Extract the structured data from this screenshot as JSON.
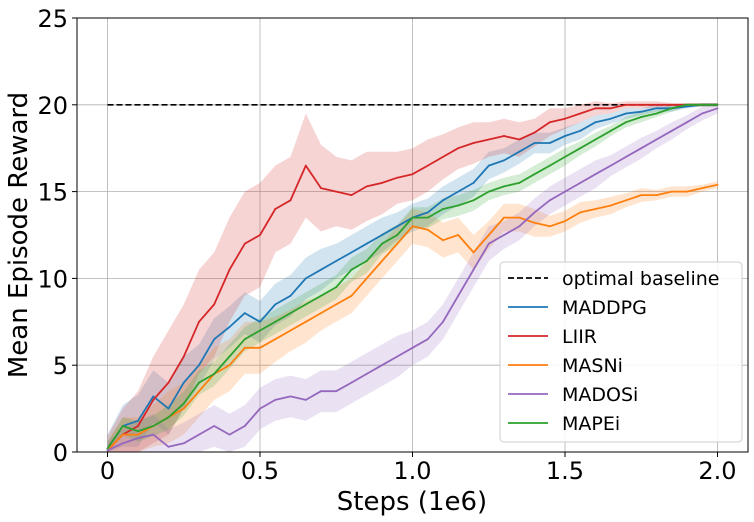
{
  "chart_data": {
    "type": "line",
    "title": "",
    "xlabel": "Steps (1e6)",
    "ylabel": "Mean Episode Reward",
    "xlim": [
      -0.1,
      2.1
    ],
    "ylim": [
      0,
      25
    ],
    "xticks": [
      0,
      0.5,
      1.0,
      1.5,
      2.0
    ],
    "xtick_labels": [
      "0",
      "0.5",
      "1.0",
      "1.5",
      "2.0"
    ],
    "yticks": [
      0,
      5,
      10,
      15,
      20,
      25
    ],
    "ytick_labels": [
      "0",
      "5",
      "10",
      "15",
      "20",
      "25"
    ],
    "grid": true,
    "legend_position": "lower-right",
    "baseline": {
      "name": "optimal baseline",
      "value": 20,
      "x": [
        0,
        2.0
      ],
      "color": "#000000",
      "style": "dashed"
    },
    "series": [
      {
        "name": "MADDPG",
        "color": "#1f77b4",
        "x": [
          0,
          0.05,
          0.1,
          0.15,
          0.2,
          0.25,
          0.3,
          0.35,
          0.4,
          0.45,
          0.5,
          0.55,
          0.6,
          0.65,
          0.7,
          0.75,
          0.8,
          0.85,
          0.9,
          0.95,
          1.0,
          1.05,
          1.1,
          1.15,
          1.2,
          1.25,
          1.3,
          1.35,
          1.4,
          1.45,
          1.5,
          1.55,
          1.6,
          1.65,
          1.7,
          1.75,
          1.8,
          1.85,
          1.9,
          1.95,
          2.0
        ],
        "y": [
          0.2,
          1.5,
          1.8,
          3.2,
          2.5,
          4.0,
          5.0,
          6.5,
          7.2,
          8.0,
          7.5,
          8.5,
          9.0,
          10.0,
          10.5,
          11.0,
          11.5,
          12.0,
          12.5,
          13.0,
          13.5,
          13.8,
          14.5,
          15.0,
          15.5,
          16.5,
          16.8,
          17.3,
          17.8,
          17.8,
          18.2,
          18.5,
          19.0,
          19.2,
          19.5,
          19.6,
          19.8,
          19.8,
          19.9,
          20.0,
          20.0
        ],
        "spread": [
          0.8,
          1.2,
          1.5,
          1.5,
          1.5,
          1.5,
          1.2,
          1.2,
          1.2,
          1.2,
          1.2,
          1.2,
          1.2,
          1.2,
          1.2,
          1.0,
          1.0,
          1.0,
          1.0,
          0.8,
          0.8,
          0.8,
          0.8,
          0.8,
          0.8,
          0.8,
          0.7,
          0.7,
          0.6,
          0.6,
          0.5,
          0.5,
          0.4,
          0.3,
          0.3,
          0.2,
          0.2,
          0.2,
          0.1,
          0.1,
          0.1
        ]
      },
      {
        "name": "LIIR",
        "color": "#d62728",
        "x": [
          0,
          0.05,
          0.1,
          0.15,
          0.2,
          0.25,
          0.3,
          0.35,
          0.4,
          0.45,
          0.5,
          0.55,
          0.6,
          0.65,
          0.7,
          0.75,
          0.8,
          0.85,
          0.9,
          0.95,
          1.0,
          1.05,
          1.1,
          1.15,
          1.2,
          1.25,
          1.3,
          1.35,
          1.4,
          1.45,
          1.5,
          1.55,
          1.6,
          1.65,
          1.7,
          1.75,
          1.8,
          1.85,
          1.9,
          1.95,
          2.0
        ],
        "y": [
          0.1,
          1.0,
          1.5,
          3.0,
          4.0,
          5.5,
          7.5,
          8.5,
          10.5,
          12.0,
          12.5,
          14.0,
          14.5,
          16.5,
          15.2,
          15.0,
          14.8,
          15.3,
          15.5,
          15.8,
          16.0,
          16.5,
          17.0,
          17.5,
          17.8,
          18.0,
          18.2,
          18.0,
          18.4,
          19.0,
          19.2,
          19.5,
          19.8,
          19.8,
          20.0,
          20.0,
          20.0,
          20.0,
          20.0,
          20.0,
          20.0
        ],
        "spread": [
          0.8,
          1.5,
          2.0,
          2.5,
          3.0,
          3.0,
          3.0,
          3.0,
          3.0,
          3.0,
          3.0,
          2.5,
          2.5,
          3.0,
          2.5,
          2.0,
          2.0,
          2.0,
          1.8,
          1.5,
          1.5,
          1.5,
          1.3,
          1.2,
          1.2,
          1.0,
          1.0,
          1.0,
          0.8,
          0.8,
          0.6,
          0.5,
          0.4,
          0.3,
          0.2,
          0.2,
          0.2,
          0.1,
          0.1,
          0.1,
          0.1
        ]
      },
      {
        "name": "MASNi",
        "color": "#ff7f0e",
        "x": [
          0,
          0.05,
          0.1,
          0.15,
          0.2,
          0.25,
          0.3,
          0.35,
          0.4,
          0.45,
          0.5,
          0.55,
          0.6,
          0.65,
          0.7,
          0.75,
          0.8,
          0.85,
          0.9,
          0.95,
          1.0,
          1.05,
          1.1,
          1.15,
          1.2,
          1.25,
          1.3,
          1.35,
          1.4,
          1.45,
          1.5,
          1.55,
          1.6,
          1.65,
          1.7,
          1.75,
          1.8,
          1.85,
          1.9,
          1.95,
          2.0
        ],
        "y": [
          0.1,
          1.0,
          1.0,
          1.5,
          2.0,
          2.5,
          3.5,
          4.5,
          5.0,
          6.0,
          6.0,
          6.5,
          7.0,
          7.5,
          8.0,
          8.5,
          9.0,
          10.0,
          11.0,
          12.0,
          13.0,
          12.8,
          12.2,
          12.5,
          11.5,
          12.5,
          13.5,
          13.5,
          13.2,
          13.0,
          13.3,
          13.8,
          14.0,
          14.2,
          14.5,
          14.8,
          14.8,
          15.0,
          15.0,
          15.2,
          15.4
        ],
        "spread": [
          0.5,
          1.0,
          1.0,
          1.2,
          1.5,
          1.5,
          1.5,
          1.5,
          1.5,
          1.5,
          1.5,
          1.3,
          1.2,
          1.2,
          1.0,
          1.0,
          1.0,
          1.0,
          1.0,
          1.0,
          1.0,
          1.0,
          1.0,
          1.0,
          1.0,
          0.8,
          0.8,
          0.8,
          0.8,
          0.6,
          0.6,
          0.6,
          0.5,
          0.5,
          0.4,
          0.4,
          0.3,
          0.3,
          0.3,
          0.2,
          0.2
        ]
      },
      {
        "name": "MADOSi",
        "color": "#9467bd",
        "x": [
          0,
          0.05,
          0.1,
          0.15,
          0.2,
          0.25,
          0.3,
          0.35,
          0.4,
          0.45,
          0.5,
          0.55,
          0.6,
          0.65,
          0.7,
          0.75,
          0.8,
          0.85,
          0.9,
          0.95,
          1.0,
          1.05,
          1.1,
          1.15,
          1.2,
          1.25,
          1.3,
          1.35,
          1.4,
          1.45,
          1.5,
          1.55,
          1.6,
          1.65,
          1.7,
          1.75,
          1.8,
          1.85,
          1.9,
          1.95,
          2.0
        ],
        "y": [
          0.1,
          0.5,
          0.8,
          1.0,
          0.3,
          0.5,
          1.0,
          1.5,
          1.0,
          1.5,
          2.5,
          3.0,
          3.2,
          3.0,
          3.5,
          3.5,
          4.0,
          4.5,
          5.0,
          5.5,
          6.0,
          6.5,
          7.5,
          9.0,
          10.5,
          12.0,
          12.5,
          13.0,
          13.8,
          14.5,
          15.0,
          15.5,
          16.0,
          16.5,
          17.0,
          17.5,
          18.0,
          18.5,
          19.0,
          19.5,
          19.8
        ],
        "spread": [
          0.5,
          0.8,
          1.0,
          1.2,
          1.0,
          1.2,
          1.2,
          1.2,
          1.2,
          1.2,
          1.2,
          1.2,
          1.2,
          1.2,
          1.2,
          1.2,
          1.2,
          1.2,
          1.2,
          1.2,
          1.0,
          1.0,
          1.0,
          1.0,
          1.0,
          1.0,
          0.8,
          0.8,
          0.8,
          0.8,
          0.8,
          0.8,
          0.8,
          0.6,
          0.6,
          0.6,
          0.5,
          0.5,
          0.4,
          0.4,
          0.3
        ]
      },
      {
        "name": "MAPEi",
        "color": "#2ca02c",
        "x": [
          0,
          0.05,
          0.1,
          0.15,
          0.2,
          0.25,
          0.3,
          0.35,
          0.4,
          0.45,
          0.5,
          0.55,
          0.6,
          0.65,
          0.7,
          0.75,
          0.8,
          0.85,
          0.9,
          0.95,
          1.0,
          1.05,
          1.1,
          1.15,
          1.2,
          1.25,
          1.3,
          1.35,
          1.4,
          1.45,
          1.5,
          1.55,
          1.6,
          1.65,
          1.7,
          1.75,
          1.8,
          1.85,
          1.9,
          1.95,
          2.0
        ],
        "y": [
          0.2,
          1.5,
          1.2,
          1.5,
          2.0,
          2.8,
          4.0,
          4.5,
          5.5,
          6.5,
          7.0,
          7.5,
          8.0,
          8.5,
          9.0,
          9.5,
          10.5,
          11.0,
          12.0,
          12.5,
          13.5,
          13.5,
          14.0,
          14.2,
          14.5,
          15.0,
          15.3,
          15.5,
          16.0,
          16.5,
          17.0,
          17.5,
          18.0,
          18.5,
          19.0,
          19.3,
          19.5,
          19.8,
          20.0,
          20.0,
          20.0
        ],
        "spread": [
          0.4,
          0.5,
          0.6,
          0.6,
          0.7,
          0.7,
          0.7,
          0.7,
          0.7,
          0.7,
          0.7,
          0.7,
          0.7,
          0.7,
          0.7,
          0.7,
          0.7,
          0.7,
          0.6,
          0.6,
          0.6,
          0.6,
          0.6,
          0.6,
          0.6,
          0.5,
          0.5,
          0.5,
          0.5,
          0.5,
          0.5,
          0.4,
          0.4,
          0.3,
          0.3,
          0.3,
          0.2,
          0.2,
          0.1,
          0.1,
          0.1
        ]
      }
    ]
  }
}
